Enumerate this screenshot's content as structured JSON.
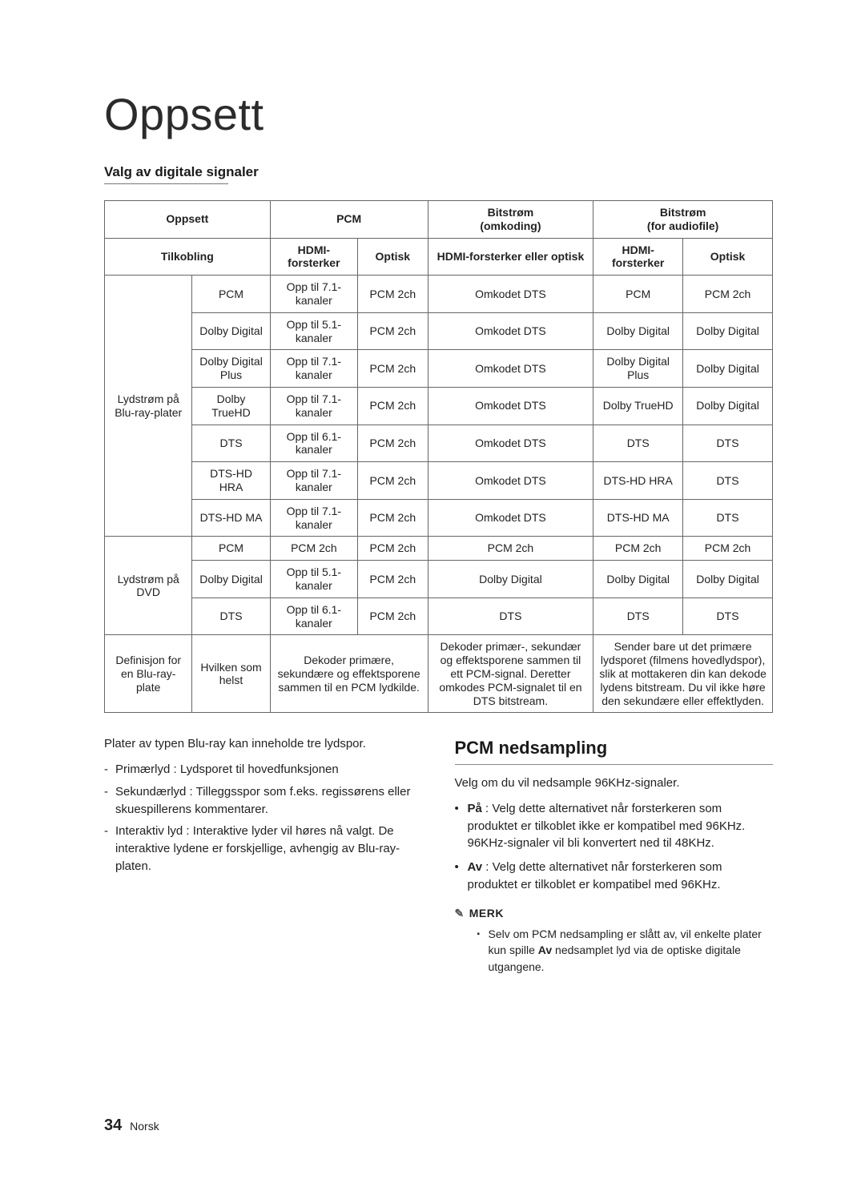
{
  "chapter": "Oppsett",
  "subheading": "Valg av digitale signaler",
  "table": {
    "header_row1": {
      "oppsett": "Oppsett",
      "pcm": "PCM",
      "bit_re": "Bitstrøm\n(omkoding)",
      "bit_audio": "Bitstrøm\n(for audiofile)"
    },
    "header_row2": {
      "tilkobling": "Tilkobling",
      "hdmi1": "HDMI-forsterker",
      "optisk1": "Optisk",
      "hdmi_opt": "HDMI-forsterker eller optisk",
      "hdmi2": "HDMI-forsterker",
      "optisk2": "Optisk"
    },
    "group_bluray": {
      "label": "Lydstrøm på Blu-ray-plater",
      "rows": [
        {
          "fmt": "PCM",
          "pcmh": "Opp til 7.1-kanaler",
          "pcmo": "PCM 2ch",
          "re": "Omkodet DTS",
          "ah": "PCM",
          "ao": "PCM 2ch"
        },
        {
          "fmt": "Dolby Digital",
          "pcmh": "Opp til 5.1-kanaler",
          "pcmo": "PCM 2ch",
          "re": "Omkodet DTS",
          "ah": "Dolby Digital",
          "ao": "Dolby Digital"
        },
        {
          "fmt": "Dolby Digital Plus",
          "pcmh": "Opp til 7.1-kanaler",
          "pcmo": "PCM 2ch",
          "re": "Omkodet DTS",
          "ah": "Dolby Digital Plus",
          "ao": "Dolby Digital"
        },
        {
          "fmt": "Dolby TrueHD",
          "pcmh": "Opp til 7.1-kanaler",
          "pcmo": "PCM 2ch",
          "re": "Omkodet DTS",
          "ah": "Dolby TrueHD",
          "ao": "Dolby Digital"
        },
        {
          "fmt": "DTS",
          "pcmh": "Opp til 6.1-kanaler",
          "pcmo": "PCM 2ch",
          "re": "Omkodet DTS",
          "ah": "DTS",
          "ao": "DTS"
        },
        {
          "fmt": "DTS-HD HRA",
          "pcmh": "Opp til 7.1-kanaler",
          "pcmo": "PCM 2ch",
          "re": "Omkodet DTS",
          "ah": "DTS-HD HRA",
          "ao": "DTS"
        },
        {
          "fmt": "DTS-HD MA",
          "pcmh": "Opp til 7.1-kanaler",
          "pcmo": "PCM 2ch",
          "re": "Omkodet DTS",
          "ah": "DTS-HD MA",
          "ao": "DTS"
        }
      ]
    },
    "group_dvd": {
      "label": "Lydstrøm på DVD",
      "rows": [
        {
          "fmt": "PCM",
          "pcmh": "PCM 2ch",
          "pcmo": "PCM 2ch",
          "re": "PCM 2ch",
          "ah": "PCM 2ch",
          "ao": "PCM 2ch"
        },
        {
          "fmt": "Dolby Digital",
          "pcmh": "Opp til 5.1-kanaler",
          "pcmo": "PCM 2ch",
          "re": "Dolby Digital",
          "ah": "Dolby Digital",
          "ao": "Dolby Digital"
        },
        {
          "fmt": "DTS",
          "pcmh": "Opp til 6.1-kanaler",
          "pcmo": "PCM 2ch",
          "re": "DTS",
          "ah": "DTS",
          "ao": "DTS"
        }
      ]
    },
    "group_def": {
      "label": "Definisjon for en Blu-ray-plate",
      "any": "Hvilken som helst",
      "dec_pcm": "Dekoder primære, sekundære og effektsporene sammen til en PCM lydkilde.",
      "dec_re": "Dekoder primær-, sekundær og effektsporene sammen til ett PCM-signal. Deretter omkodes PCM-signalet til en DTS bitstream.",
      "dec_af": "Sender bare ut det primære lydsporet (filmens hovedlydspor), slik at mottakeren din kan dekode lydens bitstream. Du vil ikke høre den sekundære eller effektlyden."
    }
  },
  "left_para": "Plater av typen Blu-ray kan inneholde tre lydspor.",
  "left_list": [
    "Primærlyd : Lydsporet til hovedfunksjonen",
    "Sekundærlyd : Tilleggsspor som f.eks. regissørens eller skuespillerens kommentarer.",
    "Interaktiv lyd : Interaktive lyder vil høres nå valgt. De interaktive lydene er forskjellige, avhengig av Blu-ray-platen."
  ],
  "right_title": "PCM nedsampling",
  "right_intro": "Velg om du vil nedsample 96KHz-signaler.",
  "right_bullets": [
    {
      "bold": "På",
      "rest": " : Velg dette alternativet når forsterkeren som produktet er tilkoblet ikke er kompatibel med 96KHz. 96KHz-signaler vil bli konvertert ned til 48KHz."
    },
    {
      "bold": "Av",
      "rest": " : Velg dette alternativet når forsterkeren som produktet er tilkoblet er kompatibel med 96KHz."
    }
  ],
  "note_label": "MERK",
  "note_body_pre": "Selv om PCM nedsampling er slått av, vil enkelte plater kun spille ",
  "note_body_bold": "Av",
  "note_body_post": " nedsamplet lyd via de optiske digitale utgangene.",
  "footer_page": "34",
  "footer_lang": "Norsk"
}
